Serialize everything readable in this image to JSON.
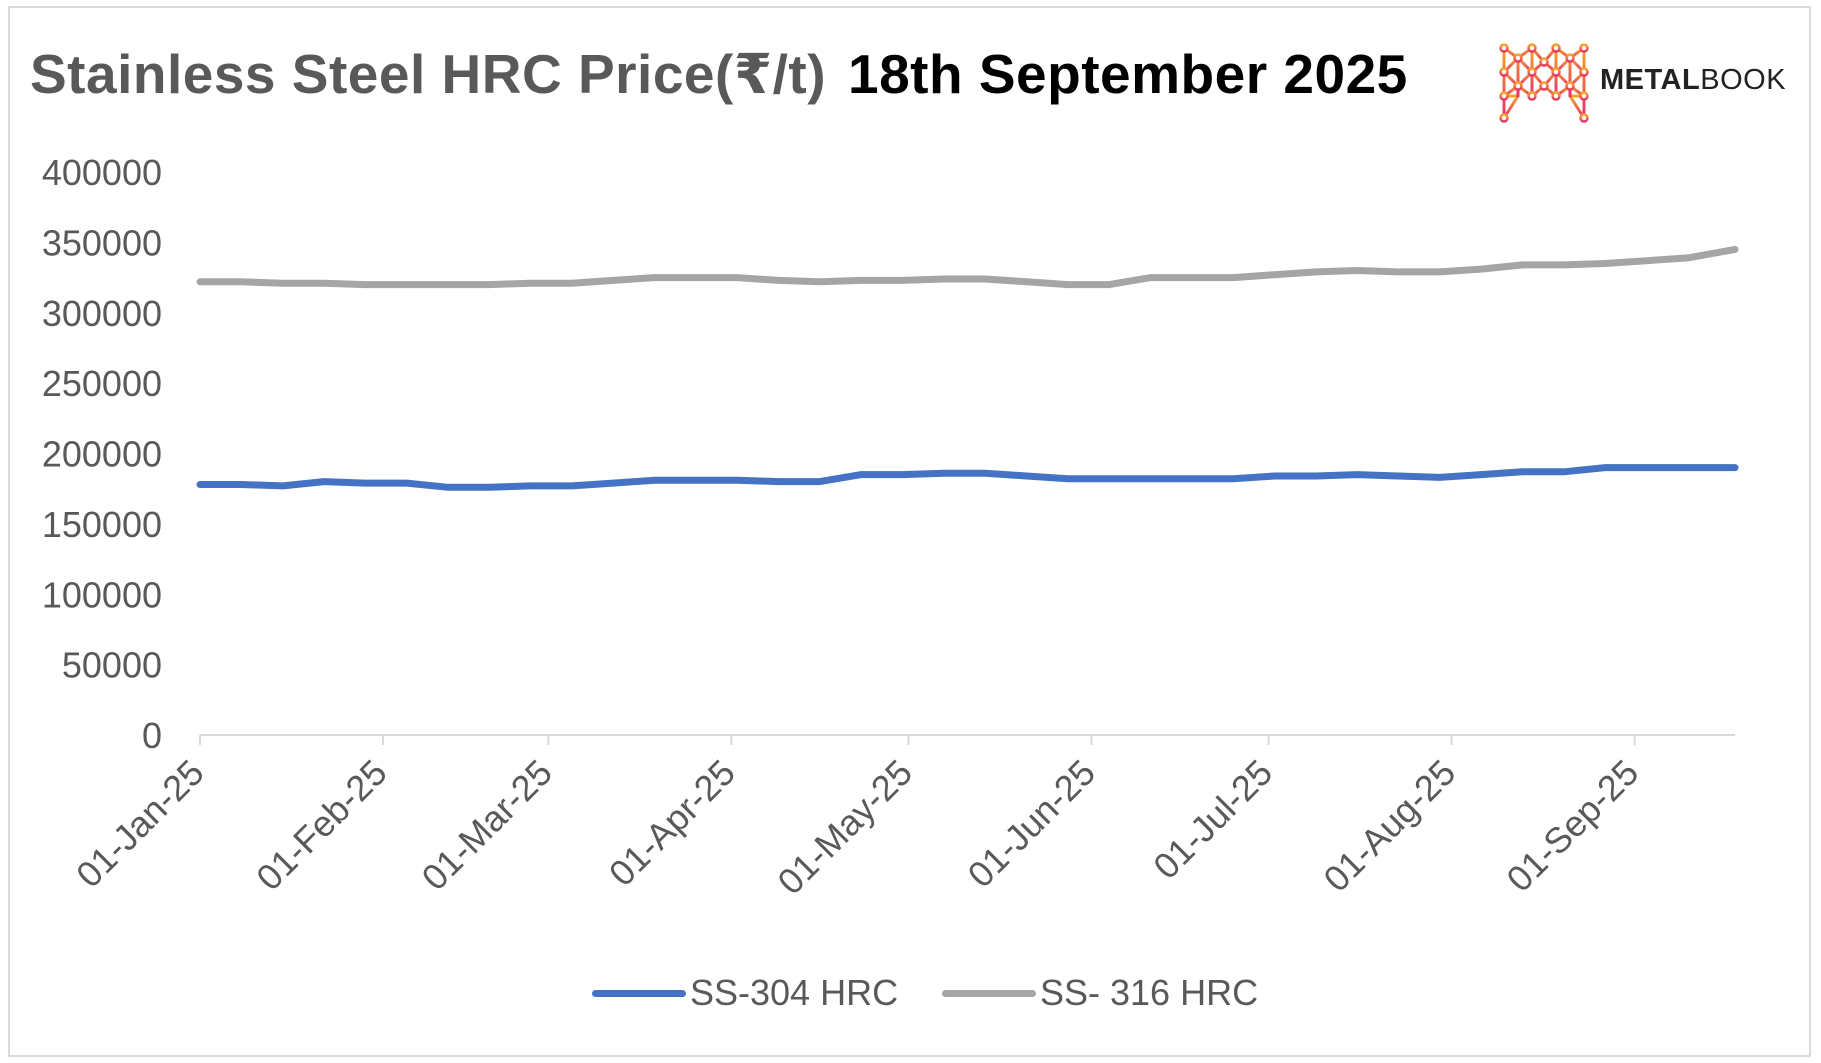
{
  "title": "Stainless Steel HRC Price(₹/t)",
  "date": "18th September 2025",
  "logo": {
    "text_bold": "METAL",
    "text_light": "BOOK",
    "icon": "metalbook-mesh-icon"
  },
  "colors": {
    "ss304": "#4472c4",
    "ss316": "#a5a5a5",
    "title": "#595959"
  },
  "chart_data": {
    "type": "line",
    "ylim": [
      0,
      400000
    ],
    "yticks": [
      0,
      50000,
      100000,
      150000,
      200000,
      250000,
      300000,
      350000,
      400000
    ],
    "ytick_labels": [
      "0",
      "50000",
      "100000",
      "150000",
      "200000",
      "250000",
      "300000",
      "350000",
      "400000"
    ],
    "xlim": [
      "2025-01-01",
      "2025-09-18"
    ],
    "xticks": [
      "2025-01-01",
      "2025-02-01",
      "2025-03-01",
      "2025-04-01",
      "2025-05-01",
      "2025-06-01",
      "2025-07-01",
      "2025-08-01",
      "2025-09-01"
    ],
    "xtick_labels": [
      "01-Jan-25",
      "01-Feb-25",
      "01-Mar-25",
      "01-Apr-25",
      "01-May-25",
      "01-Jun-25",
      "01-Jul-25",
      "01-Aug-25",
      "01-Sep-25"
    ],
    "legend_position": "bottom",
    "grid": false,
    "series": [
      {
        "name": "SS-304 HRC",
        "points": [
          [
            "2025-01-01",
            178000
          ],
          [
            "2025-01-08",
            178000
          ],
          [
            "2025-01-15",
            177000
          ],
          [
            "2025-01-22",
            180000
          ],
          [
            "2025-01-29",
            179000
          ],
          [
            "2025-02-05",
            179000
          ],
          [
            "2025-02-12",
            176000
          ],
          [
            "2025-02-19",
            176000
          ],
          [
            "2025-02-26",
            177000
          ],
          [
            "2025-03-05",
            177000
          ],
          [
            "2025-03-12",
            179000
          ],
          [
            "2025-03-19",
            181000
          ],
          [
            "2025-03-26",
            181000
          ],
          [
            "2025-04-02",
            181000
          ],
          [
            "2025-04-09",
            180000
          ],
          [
            "2025-04-16",
            180000
          ],
          [
            "2025-04-23",
            185000
          ],
          [
            "2025-04-30",
            185000
          ],
          [
            "2025-05-07",
            186000
          ],
          [
            "2025-05-14",
            186000
          ],
          [
            "2025-05-21",
            184000
          ],
          [
            "2025-05-28",
            182000
          ],
          [
            "2025-06-04",
            182000
          ],
          [
            "2025-06-11",
            182000
          ],
          [
            "2025-06-18",
            182000
          ],
          [
            "2025-06-25",
            182000
          ],
          [
            "2025-07-02",
            184000
          ],
          [
            "2025-07-09",
            184000
          ],
          [
            "2025-07-16",
            185000
          ],
          [
            "2025-07-23",
            184000
          ],
          [
            "2025-07-30",
            183000
          ],
          [
            "2025-08-06",
            185000
          ],
          [
            "2025-08-13",
            187000
          ],
          [
            "2025-08-20",
            187000
          ],
          [
            "2025-08-27",
            190000
          ],
          [
            "2025-09-03",
            190000
          ],
          [
            "2025-09-10",
            190000
          ],
          [
            "2025-09-18",
            190000
          ]
        ]
      },
      {
        "name": "SS- 316 HRC",
        "points": [
          [
            "2025-01-01",
            322000
          ],
          [
            "2025-01-08",
            322000
          ],
          [
            "2025-01-15",
            321000
          ],
          [
            "2025-01-22",
            321000
          ],
          [
            "2025-01-29",
            320000
          ],
          [
            "2025-02-05",
            320000
          ],
          [
            "2025-02-12",
            320000
          ],
          [
            "2025-02-19",
            320000
          ],
          [
            "2025-02-26",
            321000
          ],
          [
            "2025-03-05",
            321000
          ],
          [
            "2025-03-12",
            323000
          ],
          [
            "2025-03-19",
            325000
          ],
          [
            "2025-03-26",
            325000
          ],
          [
            "2025-04-02",
            325000
          ],
          [
            "2025-04-09",
            323000
          ],
          [
            "2025-04-16",
            322000
          ],
          [
            "2025-04-23",
            323000
          ],
          [
            "2025-04-30",
            323000
          ],
          [
            "2025-05-07",
            324000
          ],
          [
            "2025-05-14",
            324000
          ],
          [
            "2025-05-21",
            322000
          ],
          [
            "2025-05-28",
            320000
          ],
          [
            "2025-06-04",
            320000
          ],
          [
            "2025-06-11",
            325000
          ],
          [
            "2025-06-18",
            325000
          ],
          [
            "2025-06-25",
            325000
          ],
          [
            "2025-07-02",
            327000
          ],
          [
            "2025-07-09",
            329000
          ],
          [
            "2025-07-16",
            330000
          ],
          [
            "2025-07-23",
            329000
          ],
          [
            "2025-07-30",
            329000
          ],
          [
            "2025-08-06",
            331000
          ],
          [
            "2025-08-13",
            334000
          ],
          [
            "2025-08-20",
            334000
          ],
          [
            "2025-08-27",
            335000
          ],
          [
            "2025-09-03",
            337000
          ],
          [
            "2025-09-10",
            339000
          ],
          [
            "2025-09-18",
            345000
          ]
        ]
      }
    ]
  }
}
